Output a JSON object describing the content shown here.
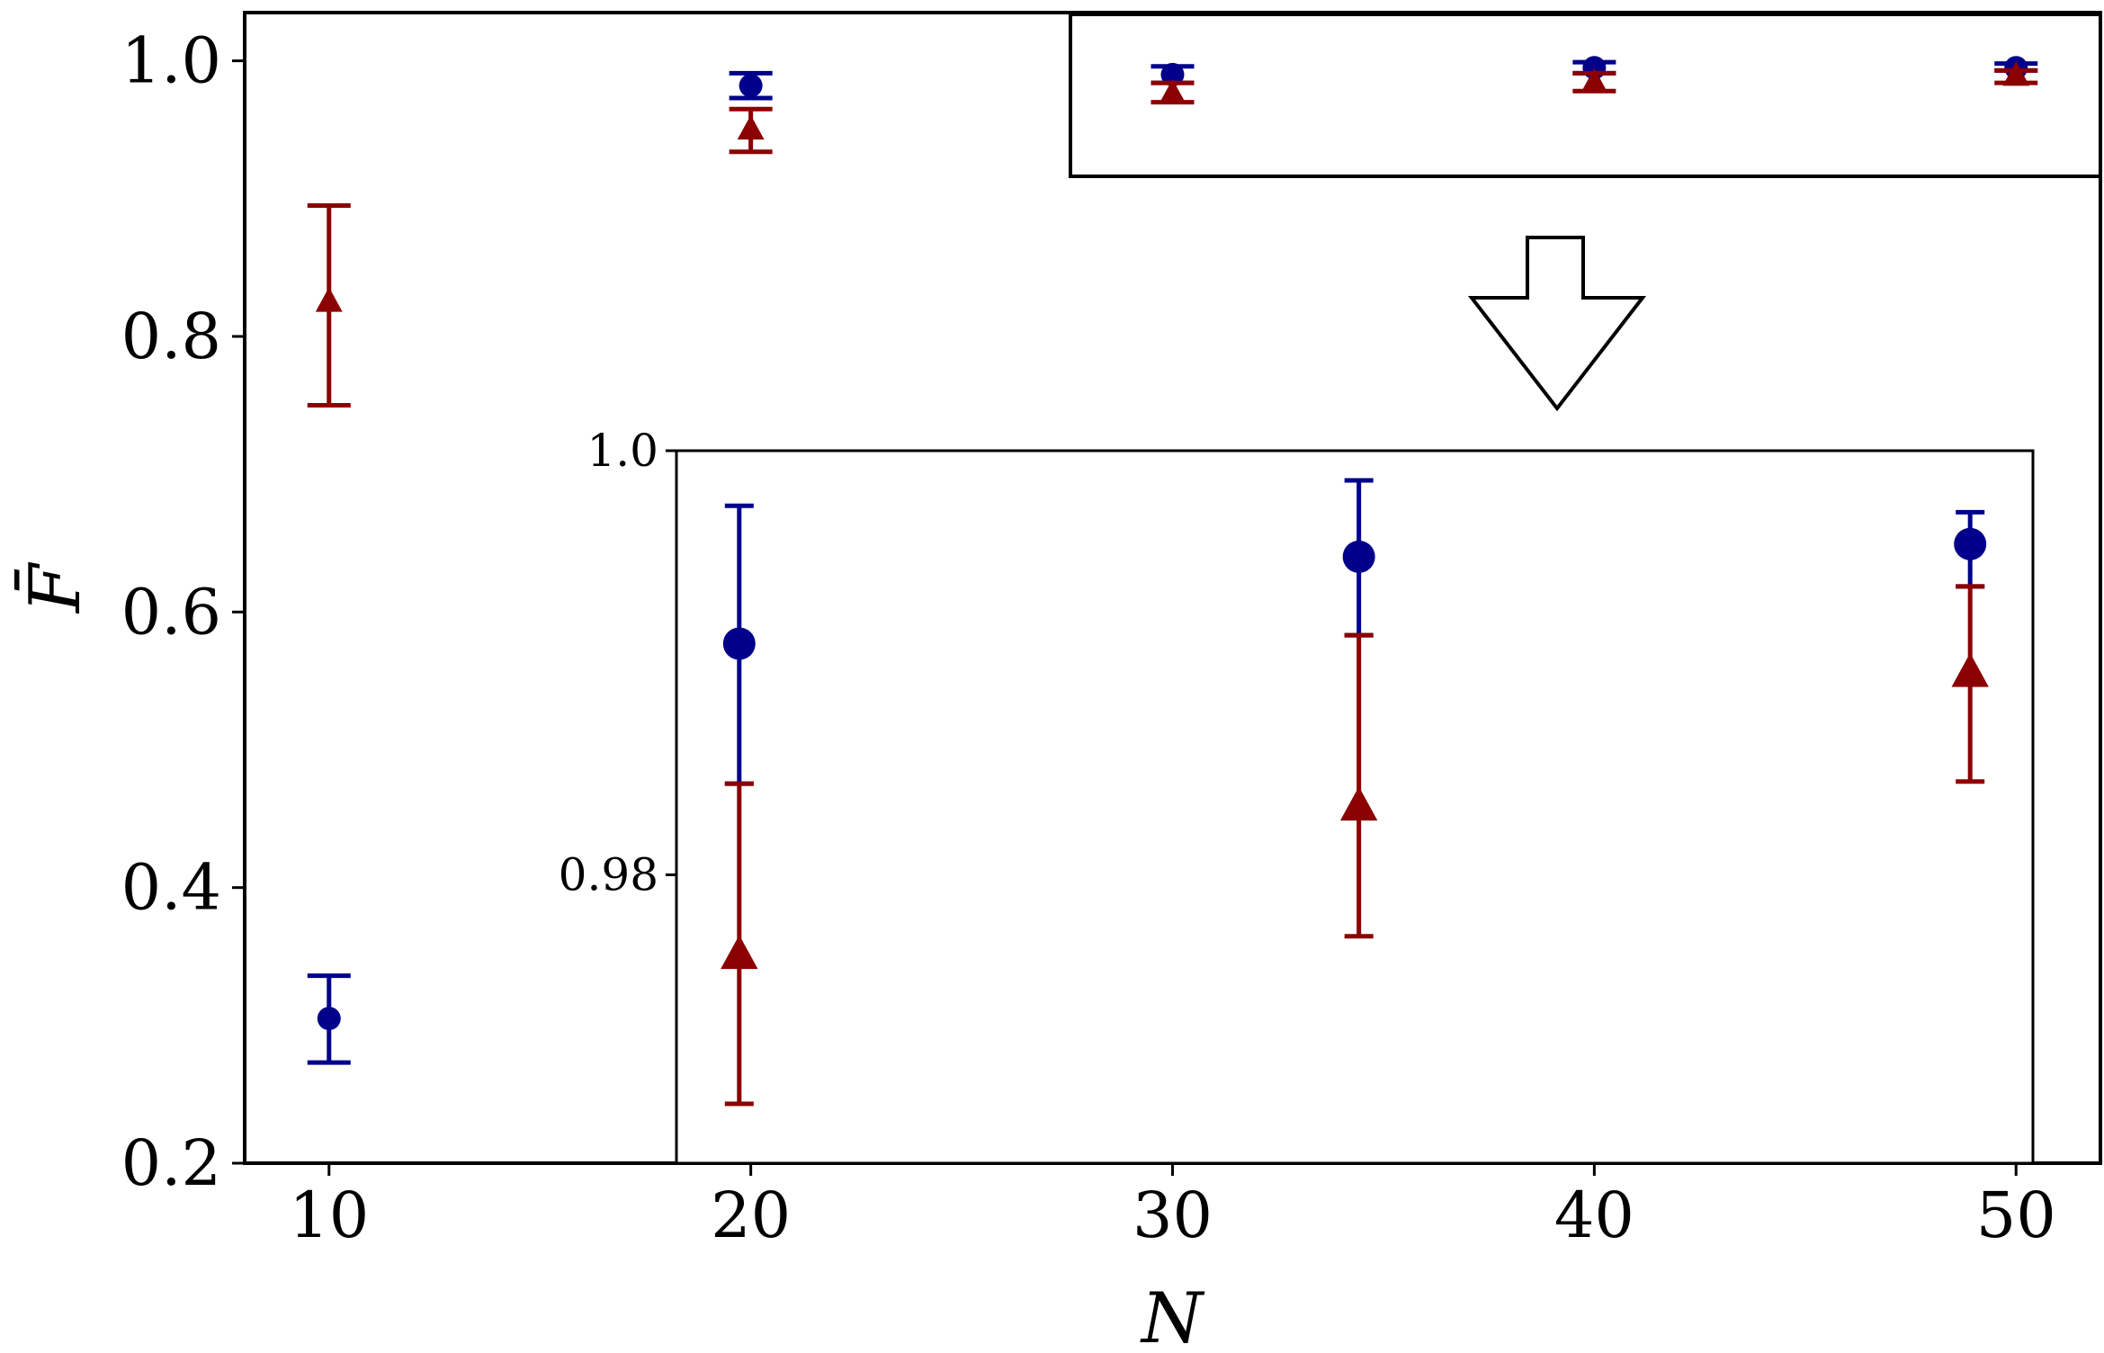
{
  "chart_data": [
    {
      "id": "main",
      "type": "scatter",
      "title": "",
      "xlabel": "N",
      "ylabel": "F̄",
      "xlim": [
        8,
        52
      ],
      "ylim": [
        0.2,
        1.035
      ],
      "x_ticks": [
        10,
        20,
        30,
        40,
        50
      ],
      "x_tick_labels": [
        "10",
        "20",
        "30",
        "40",
        "50"
      ],
      "y_ticks": [
        0.2,
        0.4,
        0.6,
        0.8,
        1.0
      ],
      "y_tick_labels": [
        "0.2",
        "0.4",
        "0.6",
        "0.8",
        "1.0"
      ],
      "grid": false,
      "legend": "none",
      "series": [
        {
          "marker": "circle",
          "color": "#00008b",
          "x": [
            10,
            20,
            30,
            40,
            50
          ],
          "y": [
            0.305,
            0.982,
            0.99,
            0.995,
            0.995
          ],
          "yerr_low": [
            0.273,
            0.973,
            0.984,
            0.991,
            0.993
          ],
          "yerr_high": [
            0.336,
            0.991,
            0.996,
            0.999,
            0.998
          ]
        },
        {
          "marker": "triangle",
          "color": "#8b0000",
          "x": [
            10,
            20,
            30,
            40,
            50
          ],
          "y": [
            0.825,
            0.95,
            0.976,
            0.984,
            0.989
          ],
          "yerr_low": [
            0.75,
            0.934,
            0.97,
            0.978,
            0.984
          ],
          "yerr_high": [
            0.895,
            0.965,
            0.984,
            0.991,
            0.993
          ]
        }
      ]
    },
    {
      "id": "inset",
      "type": "scatter",
      "title": "",
      "xlabel": "",
      "ylabel": "",
      "xlim": [
        18,
        50.4
      ],
      "ylim": [
        0.9664,
        1.0
      ],
      "y_ticks": [
        0.98,
        1.0
      ],
      "y_tick_labels": [
        "0.98",
        "1.0"
      ],
      "grid": false,
      "legend": "none",
      "series": [
        {
          "marker": "circle",
          "color": "#00008b",
          "x": [
            19.5,
            34.3,
            48.9
          ],
          "y": [
            0.9909,
            0.995,
            0.9956
          ],
          "yerr_low": [
            0.9843,
            0.9913,
            0.9936
          ],
          "yerr_high": [
            0.9974,
            0.9986,
            0.9971
          ]
        },
        {
          "marker": "triangle",
          "color": "#8b0000",
          "x": [
            19.5,
            34.3,
            48.9
          ],
          "y": [
            0.9762,
            0.9832,
            0.9895
          ],
          "yerr_low": [
            0.9692,
            0.9771,
            0.9844
          ],
          "yerr_high": [
            0.9843,
            0.9913,
            0.9936
          ]
        }
      ]
    }
  ]
}
